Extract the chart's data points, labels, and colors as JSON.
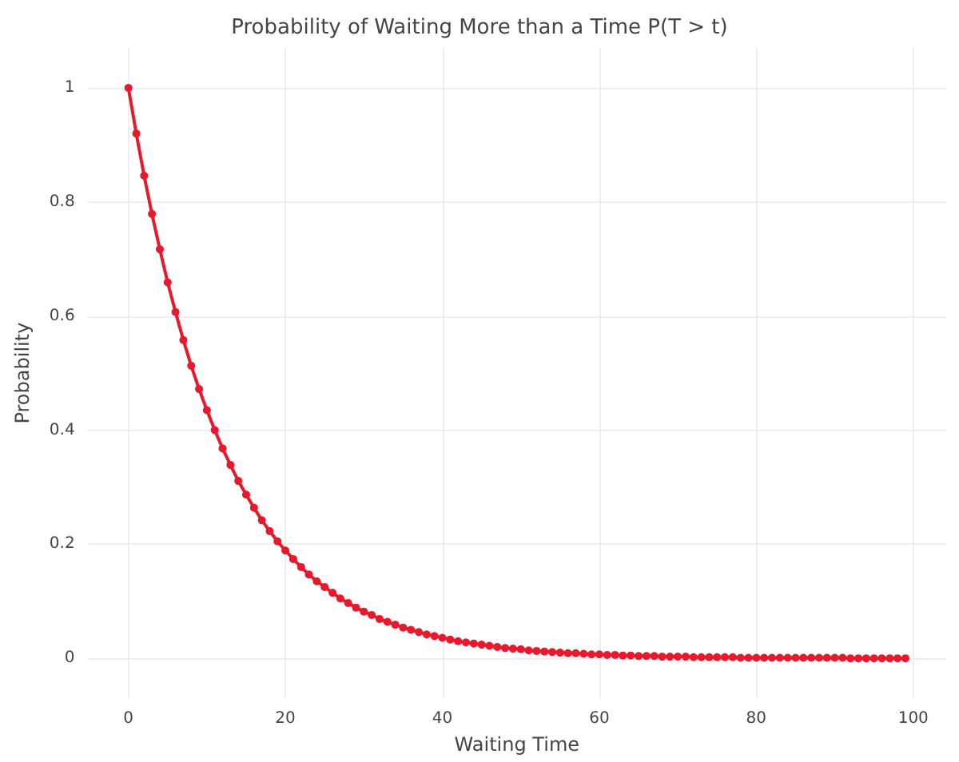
{
  "chart_data": {
    "type": "line",
    "title": "Probability of Waiting More than a Time P(T > t)",
    "xlabel": "Waiting Time",
    "ylabel": "Probability",
    "x": [
      0,
      1,
      2,
      3,
      4,
      5,
      6,
      7,
      8,
      9,
      10,
      11,
      12,
      13,
      14,
      15,
      16,
      17,
      18,
      19,
      20,
      21,
      22,
      23,
      24,
      25,
      26,
      27,
      28,
      29,
      30,
      31,
      32,
      33,
      34,
      35,
      36,
      37,
      38,
      39,
      40,
      41,
      42,
      43,
      44,
      45,
      46,
      47,
      48,
      49,
      50,
      51,
      52,
      53,
      54,
      55,
      56,
      57,
      58,
      59,
      60,
      61,
      62,
      63,
      64,
      65,
      66,
      67,
      68,
      69,
      70,
      71,
      72,
      73,
      74,
      75,
      76,
      77,
      78,
      79,
      80,
      81,
      82,
      83,
      84,
      85,
      86,
      87,
      88,
      89,
      90,
      91,
      92,
      93,
      94,
      95,
      96,
      97,
      98,
      99
    ],
    "series": [
      {
        "color": "#e8192c",
        "values": [
          1,
          0.92,
          0.846,
          0.779,
          0.717,
          0.659,
          0.607,
          0.558,
          0.513,
          0.472,
          0.435,
          0.4,
          0.368,
          0.339,
          0.311,
          0.287,
          0.264,
          0.242,
          0.223,
          0.205,
          0.189,
          0.174,
          0.16,
          0.147,
          0.135,
          0.125,
          0.115,
          0.105,
          0.097,
          0.089,
          0.082,
          0.076,
          0.069,
          0.064,
          0.059,
          0.054,
          0.05,
          0.046,
          0.042,
          0.039,
          0.036,
          0.033,
          0.03,
          0.028,
          0.026,
          0.024,
          0.022,
          0.02,
          0.018,
          0.017,
          0.016,
          0.014,
          0.013,
          0.012,
          0.011,
          0.01,
          0.009,
          0.009,
          0.008,
          0.007,
          0.007,
          0.006,
          0.006,
          0.005,
          0.005,
          0.004,
          0.004,
          0.004,
          0.003,
          0.003,
          0.003,
          0.003,
          0.002,
          0.002,
          0.002,
          0.002,
          0.002,
          0.002,
          0.001,
          0.001,
          0.001,
          0.001,
          0.001,
          0.001,
          0.001,
          0.001,
          0.001,
          0.001,
          0.001,
          0.001,
          0.001,
          0.001,
          0,
          0,
          0,
          0,
          0,
          0,
          0,
          0
        ]
      }
    ],
    "xlim": [
      -5.2,
      104.2
    ],
    "xticks": [
      0,
      20,
      40,
      60,
      80,
      100
    ],
    "ylim": [
      -0.07,
      1.07
    ],
    "yticks": [
      0,
      0.2,
      0.4,
      0.6,
      0.8,
      1
    ],
    "grid": true,
    "marker": "circle",
    "line_style": "solid"
  }
}
